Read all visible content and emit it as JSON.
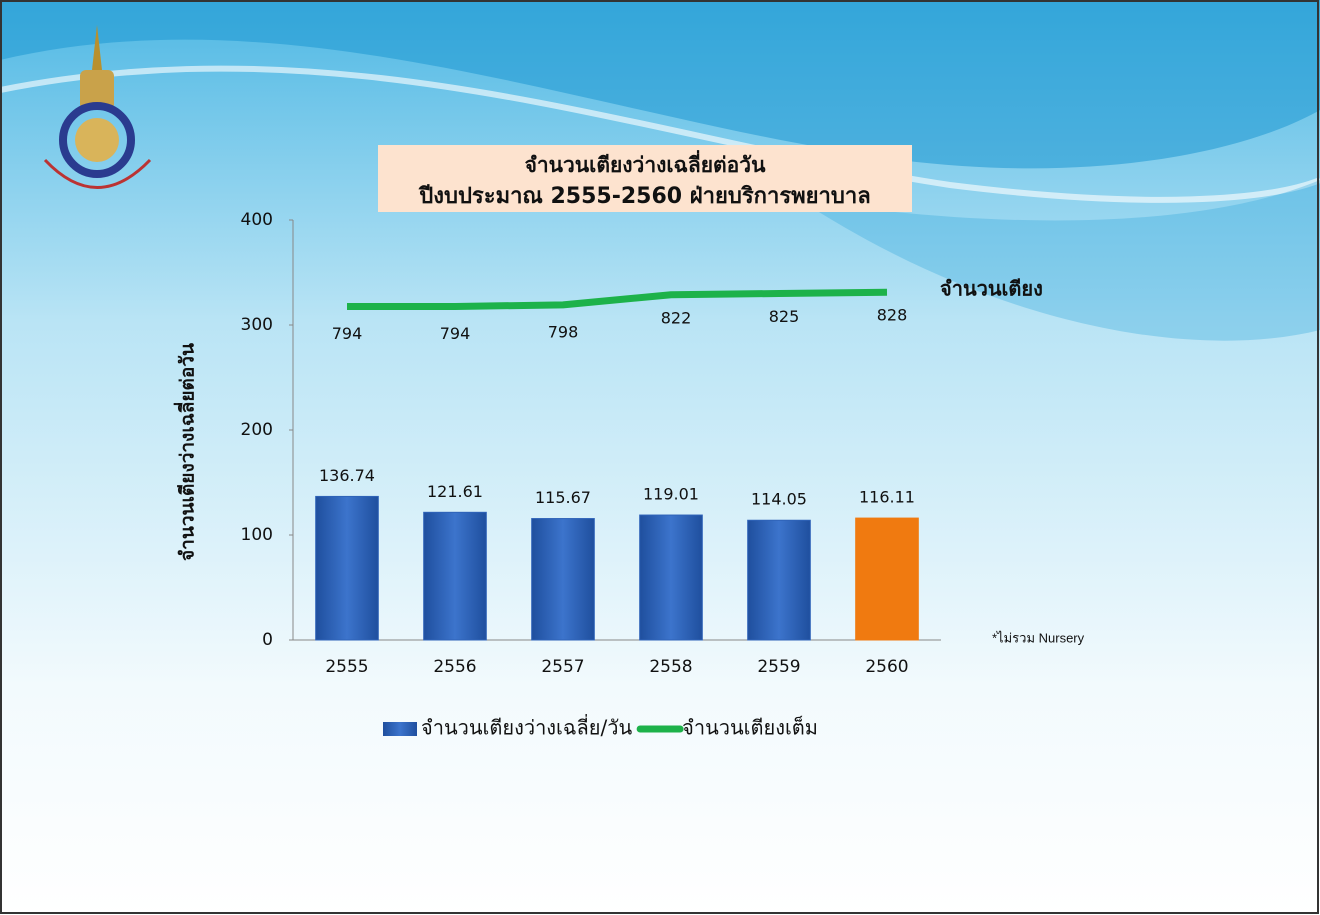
{
  "chart_data": {
    "type": "bar",
    "title": "จำนวนเตียงว่างเฉลี่ยต่อวัน",
    "subtitle": "ปีงบประมาณ 2555-2560 ฝ่ายบริการพยาบาล",
    "y_label": "จำนวนเตียงว่างเฉลี่ยต่อวัน",
    "annotation": "จำนวนเตียง",
    "note": "*ไม่รวม Nursery",
    "categories": [
      "2555",
      "2556",
      "2557",
      "2558",
      "2559",
      "2560"
    ],
    "series": [
      {
        "name": "จำนวนเตียงว่างเฉลี่ย/วัน",
        "type": "bar",
        "color": "#2f63b8",
        "colors": [
          "#2f63b8",
          "#2f63b8",
          "#2f63b8",
          "#2f63b8",
          "#2f63b8",
          "#f07a10"
        ],
        "values": [
          136.74,
          121.61,
          115.67,
          119.01,
          114.05,
          116.11
        ]
      },
      {
        "name": "จำนวนเตียงเต็ม",
        "type": "line",
        "color": "#1db24a",
        "axis": "y2",
        "values": [
          794,
          794,
          798,
          822,
          825,
          828
        ]
      }
    ],
    "ylim": [
      0,
      400
    ],
    "yticks": [
      0,
      100,
      200,
      300,
      400
    ],
    "y2lim": [
      0,
      1000
    ]
  }
}
